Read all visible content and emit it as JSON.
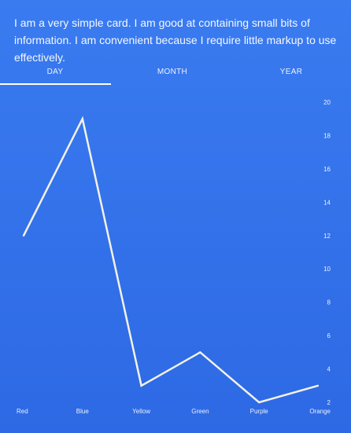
{
  "card": {
    "text": "I am a very simple card. I am good at containing small bits of information. I am convenient because I require little markup to use effectively."
  },
  "tabs": [
    {
      "label": "DAY",
      "active": true
    },
    {
      "label": "MONTH",
      "active": false
    },
    {
      "label": "YEAR",
      "active": false
    }
  ],
  "colors": {
    "background": "#3a7bf0",
    "line": "#f2f2e8",
    "text": "#ffffff"
  },
  "chart_data": {
    "type": "line",
    "categories": [
      "Red",
      "Blue",
      "Yellow",
      "Green",
      "Purple",
      "Orange"
    ],
    "series": [
      {
        "values": [
          12,
          19,
          3,
          5,
          2,
          3
        ]
      }
    ],
    "ylim": [
      2,
      20
    ],
    "yticks": [
      2,
      4,
      6,
      8,
      10,
      12,
      14,
      16,
      18,
      20
    ],
    "ytick_position": "right",
    "grid": false,
    "legend": "none"
  }
}
